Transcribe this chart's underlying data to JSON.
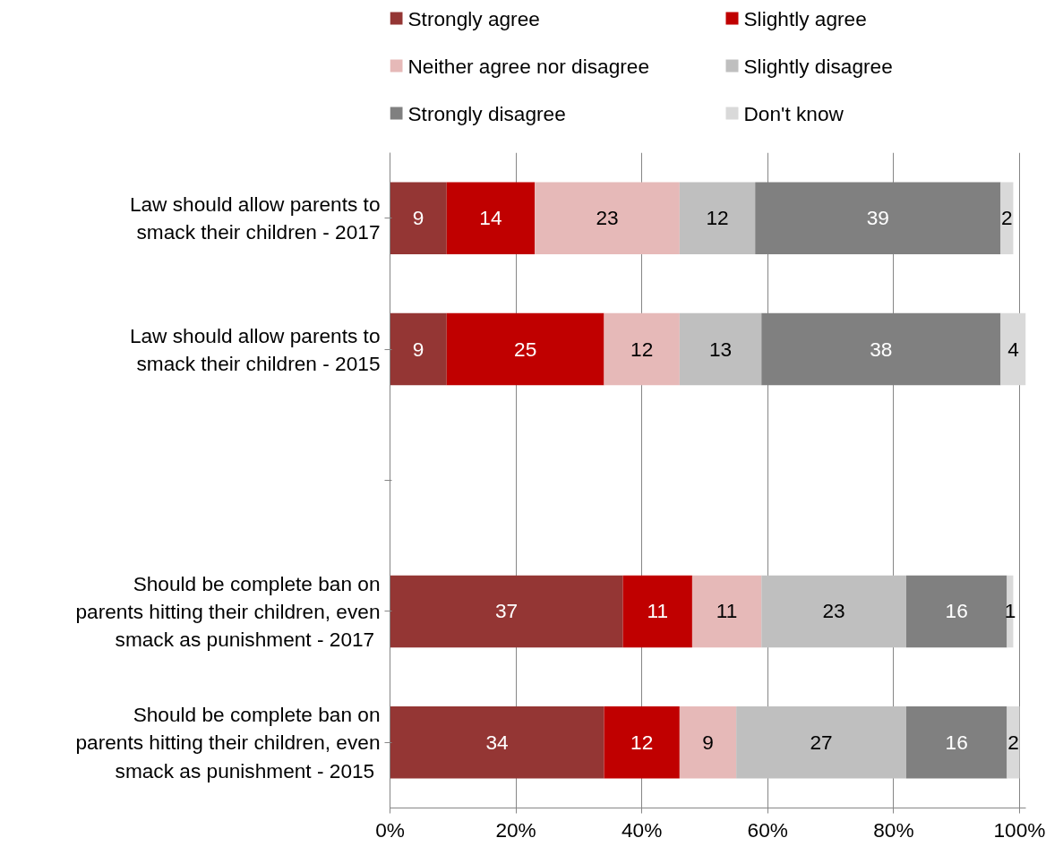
{
  "chart_data": {
    "type": "bar",
    "orientation": "horizontal",
    "stacked": true,
    "data_labels": true,
    "grid": "x",
    "legend": "top",
    "categories": [
      "Law should allow parents to\nsmack their children - 2017",
      "Law should allow parents to\nsmack their children - 2015",
      null,
      "Should be complete ban on\nparents hitting their children, even\nsmack as  punishment - 2017",
      "Should be complete ban on\nparents hitting their children, even\nsmack as  punishment - 2015"
    ],
    "series": [
      {
        "name": "Strongly agree",
        "color": "#943634",
        "values": [
          9,
          9,
          null,
          37,
          34
        ]
      },
      {
        "name": "Slightly agree",
        "color": "#c00000",
        "values": [
          14,
          25,
          null,
          11,
          12
        ]
      },
      {
        "name": "Neither agree nor disagree",
        "color": "#e6b9b8",
        "values": [
          23,
          12,
          null,
          11,
          9
        ]
      },
      {
        "name": "Slightly disagree",
        "color": "#bfbfbf",
        "values": [
          12,
          13,
          null,
          23,
          27
        ]
      },
      {
        "name": "Strongly disagree",
        "color": "#808080",
        "values": [
          39,
          38,
          null,
          16,
          16
        ]
      },
      {
        "name": "Don't know",
        "color": "#d9d9d9",
        "values": [
          2,
          4,
          null,
          1,
          2
        ]
      }
    ],
    "xlim": [
      0,
      101
    ],
    "xticks": [
      {
        "value": 0,
        "label": "0%"
      },
      {
        "value": 20,
        "label": "20%"
      },
      {
        "value": 40,
        "label": "40%"
      },
      {
        "value": 60,
        "label": "60%"
      },
      {
        "value": 80,
        "label": "80%"
      },
      {
        "value": 100,
        "label": "100%"
      }
    ]
  }
}
